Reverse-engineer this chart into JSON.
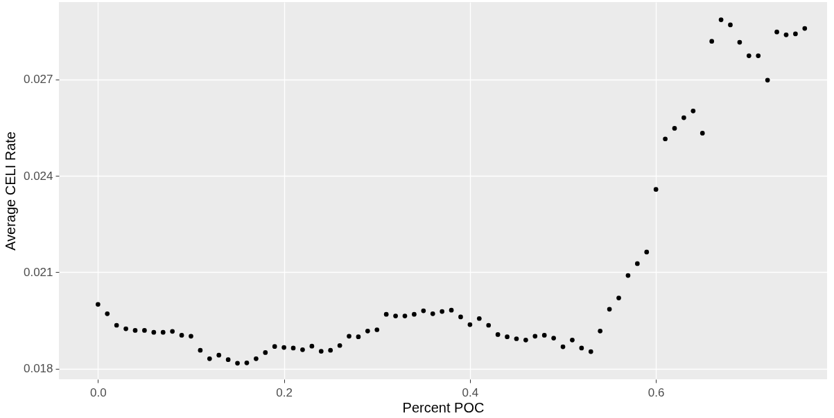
{
  "chart_data": {
    "type": "scatter",
    "xlabel": "Percent POC",
    "ylabel": "Average CELI Rate",
    "x": [
      0.0,
      0.01,
      0.02,
      0.03,
      0.04,
      0.05,
      0.06,
      0.07,
      0.08,
      0.09,
      0.1,
      0.11,
      0.12,
      0.13,
      0.14,
      0.15,
      0.16,
      0.17,
      0.18,
      0.19,
      0.2,
      0.21,
      0.22,
      0.23,
      0.24,
      0.25,
      0.26,
      0.27,
      0.28,
      0.29,
      0.3,
      0.31,
      0.32,
      0.33,
      0.34,
      0.35,
      0.36,
      0.37,
      0.38,
      0.39,
      0.4,
      0.41,
      0.42,
      0.43,
      0.44,
      0.45,
      0.46,
      0.47,
      0.48,
      0.49,
      0.5,
      0.51,
      0.52,
      0.53,
      0.54,
      0.55,
      0.56,
      0.57,
      0.58,
      0.59,
      0.6,
      0.61,
      0.62,
      0.63,
      0.64,
      0.65,
      0.66,
      0.67,
      0.68,
      0.69,
      0.7,
      0.71,
      0.72,
      0.73,
      0.74,
      0.75,
      0.76
    ],
    "series": [
      {
        "color": "#000000",
        "values": [
          0.02,
          0.01971,
          0.01935,
          0.01924,
          0.01919,
          0.01919,
          0.01913,
          0.01913,
          0.01916,
          0.01904,
          0.01901,
          0.01857,
          0.01831,
          0.01842,
          0.01828,
          0.01817,
          0.01818,
          0.01831,
          0.0185,
          0.01869,
          0.01866,
          0.01864,
          0.01859,
          0.0187,
          0.01854,
          0.01857,
          0.01872,
          0.01901,
          0.01899,
          0.01917,
          0.01921,
          0.01969,
          0.01964,
          0.01964,
          0.01969,
          0.0198,
          0.01971,
          0.01978,
          0.01982,
          0.01961,
          0.01937,
          0.01956,
          0.01935,
          0.01906,
          0.01899,
          0.01893,
          0.01889,
          0.01901,
          0.01904,
          0.01895,
          0.01868,
          0.01889,
          0.01864,
          0.01853,
          0.01917,
          0.01985,
          0.0202,
          0.0209,
          0.02127,
          0.02163,
          0.02358,
          0.02515,
          0.02548,
          0.02581,
          0.02602,
          0.02533,
          0.02819,
          0.02886,
          0.0287,
          0.02816,
          0.02774,
          0.02774,
          0.02698,
          0.02848,
          0.02839,
          0.02842,
          0.02859
        ]
      }
    ],
    "xlim": [
      -0.042,
      0.784
    ],
    "ylim": [
      0.01767,
      0.02941
    ],
    "xticks": [
      {
        "value": 0,
        "label": "0.0"
      },
      {
        "value": 0.2,
        "label": "0.2"
      },
      {
        "value": 0.4,
        "label": "0.4"
      },
      {
        "value": 0.6,
        "label": "0.6"
      }
    ],
    "yticks": [
      0.018,
      0.021,
      0.024,
      0.027
    ],
    "grid": true,
    "marker": "circle",
    "legend": false
  }
}
